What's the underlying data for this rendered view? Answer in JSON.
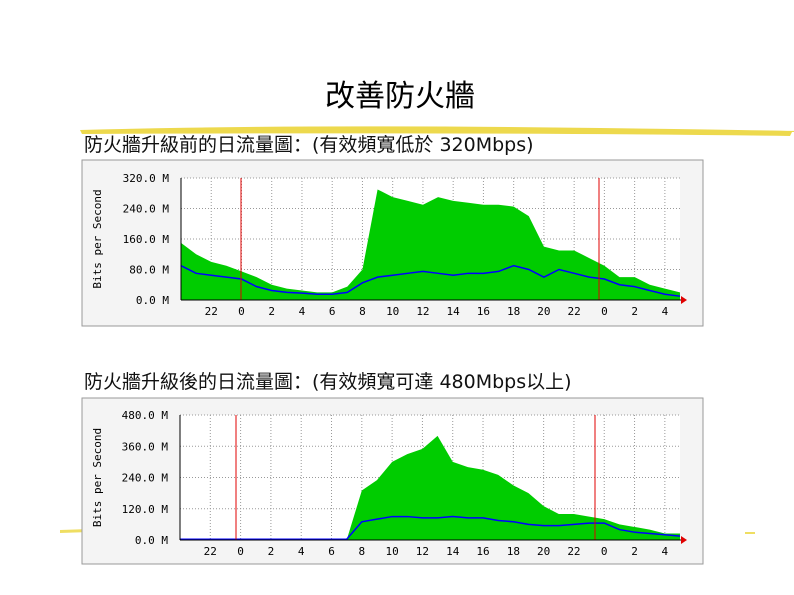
{
  "slide_title": "改善防火牆",
  "chart_data": [
    {
      "type": "area",
      "title": "防火牆升級前的日流量圖：(有效頻寬低於 320Mbps)",
      "y_label": "Bits per Second",
      "categories": [
        null,
        null,
        "22",
        null,
        "0",
        null,
        "2",
        null,
        "4",
        null,
        "6",
        null,
        "8",
        null,
        "10",
        null,
        "12",
        null,
        "14",
        null,
        "16",
        null,
        "18",
        null,
        "20",
        null,
        "22",
        null,
        "0",
        null,
        "2",
        null,
        "4",
        null
      ],
      "series": [
        {
          "color": "#00cc00",
          "values": [
            150,
            120,
            100,
            90,
            75,
            60,
            40,
            30,
            25,
            20,
            20,
            35,
            80,
            290,
            270,
            260,
            250,
            270,
            260,
            255,
            250,
            250,
            245,
            220,
            140,
            130,
            130,
            110,
            90,
            60,
            60,
            40,
            30,
            20
          ]
        },
        {
          "color": "#0000ff",
          "values": [
            90,
            70,
            65,
            60,
            55,
            35,
            25,
            20,
            18,
            15,
            15,
            20,
            45,
            60,
            65,
            70,
            75,
            70,
            65,
            70,
            70,
            75,
            90,
            80,
            60,
            80,
            70,
            60,
            55,
            40,
            35,
            25,
            15,
            10
          ]
        }
      ],
      "ylim": [
        0,
        320
      ],
      "yticks": [
        {
          "value": 0,
          "label": "0.0 M"
        },
        {
          "value": 80,
          "label": "80.0 M"
        },
        {
          "value": 160,
          "label": "160.0 M"
        },
        {
          "value": 240,
          "label": "240.0 M"
        },
        {
          "value": 320,
          "label": "320.0 M"
        }
      ],
      "grid": true
    },
    {
      "type": "area",
      "title": "防火牆升級後的日流量圖：(有效頻寬可達 480Mbps以上)",
      "y_label": "Bits per Second",
      "categories": [
        null,
        null,
        "22",
        null,
        "0",
        null,
        "2",
        null,
        "4",
        null,
        "6",
        null,
        "8",
        null,
        "10",
        null,
        "12",
        null,
        "14",
        null,
        "16",
        null,
        "18",
        null,
        "20",
        null,
        "22",
        null,
        "0",
        null,
        "2",
        null,
        "4",
        null
      ],
      "series": [
        {
          "color": "#00cc00",
          "values": [
            0,
            0,
            0,
            0,
            0,
            0,
            0,
            0,
            0,
            0,
            0,
            0,
            190,
            230,
            300,
            330,
            350,
            400,
            300,
            280,
            270,
            250,
            210,
            180,
            130,
            100,
            100,
            90,
            80,
            60,
            50,
            40,
            25,
            25
          ]
        },
        {
          "color": "#0000ff",
          "values": [
            3,
            3,
            3,
            3,
            3,
            3,
            3,
            3,
            3,
            3,
            3,
            3,
            70,
            80,
            90,
            90,
            85,
            85,
            90,
            85,
            85,
            75,
            70,
            60,
            55,
            55,
            60,
            65,
            65,
            40,
            30,
            25,
            20,
            15
          ]
        }
      ],
      "ylim": [
        0,
        480
      ],
      "yticks": [
        {
          "value": 0,
          "label": "0.0 M"
        },
        {
          "value": 120,
          "label": "120.0 M"
        },
        {
          "value": 240,
          "label": "240.0 M"
        },
        {
          "value": 360,
          "label": "360.0 M"
        },
        {
          "value": 480,
          "label": "480.0 M"
        }
      ],
      "grid": true
    }
  ]
}
